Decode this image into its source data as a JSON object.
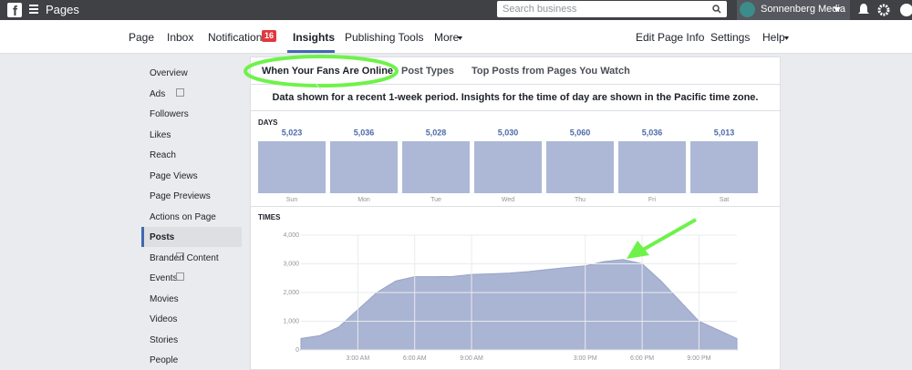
{
  "top_bar": {
    "title": "Pages",
    "search_placeholder": "Search business",
    "account": "Sonnenberg Media"
  },
  "nav": {
    "items": [
      "Page",
      "Inbox",
      "Notifications",
      "Insights",
      "Publishing Tools",
      "More",
      "Edit Page Info",
      "Settings",
      "Help"
    ],
    "notification_count": "16"
  },
  "sidebar": {
    "items": [
      "Overview",
      "Ads",
      "Followers",
      "Likes",
      "Reach",
      "Page Views",
      "Page Previews",
      "Actions on Page",
      "Posts",
      "Branded Content",
      "Events",
      "Movies",
      "Videos",
      "Stories",
      "People"
    ]
  },
  "tabs": [
    "When Your Fans Are Online",
    "Post Types",
    "Top Posts from Pages You Watch"
  ],
  "info": "Data shown for a recent 1-week period. Insights for the time of day are shown in the Pacific time zone.",
  "chart_data": [
    {
      "type": "bar",
      "title": "DAYS",
      "categories": [
        "Sun",
        "Mon",
        "Tue",
        "Wed",
        "Thu",
        "Fri",
        "Sat"
      ],
      "values": [
        5023,
        5036,
        5028,
        5030,
        5060,
        5036,
        5013
      ],
      "value_labels": [
        "5,023",
        "5,036",
        "5,028",
        "5,030",
        "5,060",
        "5,036",
        "5,013"
      ],
      "color": "#adb8d6"
    },
    {
      "type": "area",
      "title": "TIMES",
      "x": [
        0,
        1,
        2,
        3,
        4,
        5,
        6,
        7,
        8,
        9,
        10,
        11,
        12,
        13,
        14,
        15,
        16,
        17,
        18,
        19,
        20,
        21,
        22,
        23
      ],
      "values": [
        400,
        500,
        800,
        1400,
        2000,
        2400,
        2550,
        2550,
        2560,
        2630,
        2650,
        2680,
        2730,
        2800,
        2870,
        2930,
        3080,
        3150,
        3000,
        2400,
        1700,
        1000,
        700,
        400
      ],
      "color": "#aab4d3",
      "xlim": [
        0,
        23
      ],
      "ylim": [
        0,
        4000
      ],
      "xticks": [
        {
          "value": 3,
          "label": "3:00 AM"
        },
        {
          "value": 6,
          "label": "6:00 AM"
        },
        {
          "value": 9,
          "label": "9:00 AM"
        },
        {
          "value": 15,
          "label": "3:00 PM"
        },
        {
          "value": 18,
          "label": "6:00 PM"
        },
        {
          "value": 21,
          "label": "9:00 PM"
        }
      ],
      "yticks": [
        0,
        {
          "value": 1000,
          "label": "1,000"
        },
        {
          "value": 2000,
          "label": "2,000"
        },
        {
          "value": 3000,
          "label": "3,000"
        },
        {
          "value": 4000,
          "label": "4,000"
        }
      ],
      "grid": true
    }
  ]
}
